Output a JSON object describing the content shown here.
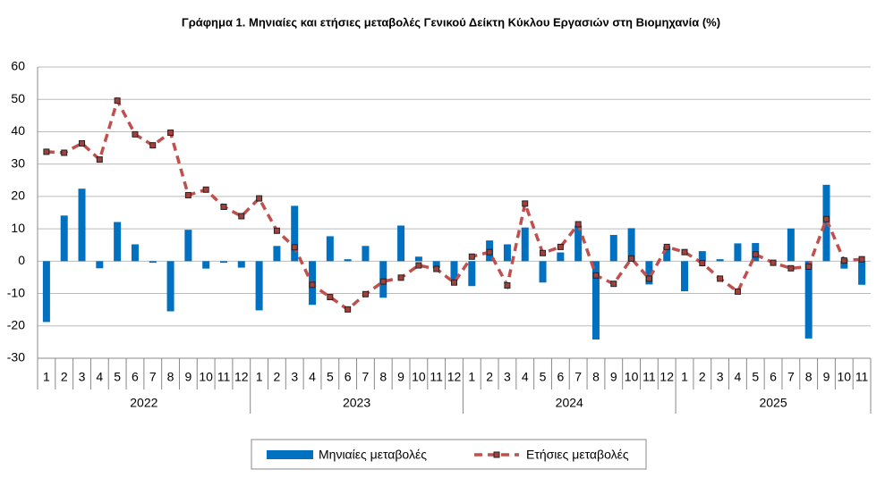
{
  "chart_data": {
    "type": "bar-line",
    "title": "Γράφημα 1.  Μηνιαίες και ετήσιες μεταβολές  Γενικού Δείκτη Κύκλου Εργασιών στη Βιομηχανία  (%)",
    "categories": [
      "1",
      "2",
      "3",
      "4",
      "5",
      "6",
      "7",
      "8",
      "9",
      "10",
      "11",
      "12",
      "1",
      "2",
      "3",
      "4",
      "5",
      "6",
      "7",
      "8",
      "9",
      "10",
      "11",
      "12",
      "1",
      "2",
      "3",
      "4",
      "5",
      "6",
      "7",
      "8",
      "9",
      "10",
      "11",
      "12",
      "1",
      "2",
      "3",
      "4",
      "5",
      "6",
      "7",
      "8",
      "9",
      "10",
      "11"
    ],
    "x_groups": [
      "2022",
      "2023",
      "2024",
      "2025"
    ],
    "series": [
      {
        "name": "Μηνιαίες μεταβολές",
        "type": "bar",
        "color": "#0070c0",
        "values": [
          -18.8,
          14.1,
          22.4,
          -2.2,
          12.1,
          5.2,
          -0.5,
          -15.5,
          9.7,
          -2.3,
          -0.5,
          -2.0,
          -15.2,
          4.7,
          17.1,
          -13.5,
          7.7,
          0.6,
          4.7,
          -11.3,
          11.0,
          1.4,
          -2.2,
          -6.0,
          -7.7,
          6.4,
          5.2,
          10.4,
          -6.6,
          2.7,
          11.0,
          -24.2,
          8.1,
          10.2,
          -7.2,
          4.5,
          -9.3,
          3.1,
          0.6,
          5.5,
          5.6,
          -0.1,
          10.1,
          -23.9,
          23.6,
          -2.3,
          -7.3
        ]
      },
      {
        "name": "Ετήσιες μεταβολές",
        "type": "line",
        "color": "#c0504d",
        "values": [
          33.8,
          33.5,
          36.4,
          31.4,
          49.6,
          39.2,
          35.8,
          39.7,
          20.4,
          22.1,
          16.8,
          13.9,
          19.4,
          9.4,
          4.3,
          -7.3,
          -11.1,
          -14.9,
          -10.2,
          -6.3,
          -5.1,
          -1.3,
          -2.4,
          -6.6,
          1.4,
          2.8,
          -7.5,
          17.8,
          2.5,
          4.4,
          11.4,
          -4.4,
          -7.0,
          0.8,
          -5.4,
          4.4,
          2.8,
          -0.6,
          -5.4,
          -9.4,
          2.1,
          -0.5,
          -2.2,
          -1.7,
          13.0,
          0.2,
          0.6
        ]
      }
    ],
    "ylim": [
      -30,
      60
    ],
    "yticks": [
      -30,
      -20,
      -10,
      0,
      10,
      20,
      30,
      40,
      50,
      60
    ],
    "grid": true
  }
}
